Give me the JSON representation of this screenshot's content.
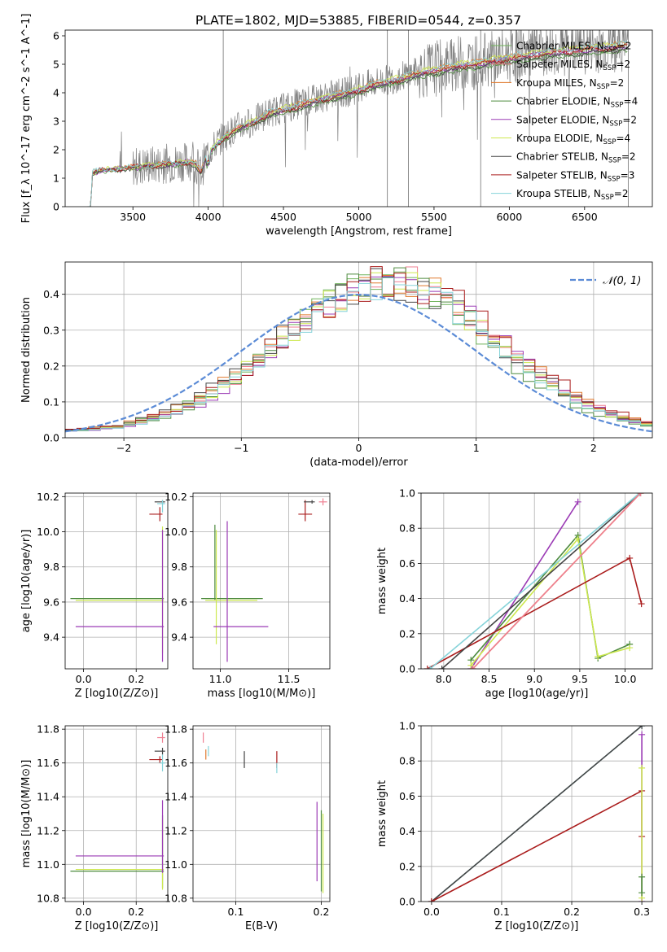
{
  "figure_title": "PLATE=1802, MJD=53885, FIBERID=0544, z=0.357",
  "colors": {
    "Chabrier MILES": "#6fb35a",
    "Salpeter MILES": "#ef7f92",
    "Kroupa MILES": "#e07a2e",
    "Chabrier ELODIE": "#4d8a3f",
    "Salpeter ELODIE": "#9b3bb5",
    "Kroupa ELODIE": "#cde84f",
    "Chabrier STELIB": "#444444",
    "Salpeter STELIB": "#aa1c1c",
    "Kroupa STELIB": "#86d3d9",
    "data": "#808080",
    "normal": "#5b8bd6"
  },
  "chart_data": [
    {
      "id": "spectrum",
      "type": "line",
      "title": "PLATE=1802, MJD=53885, FIBERID=0544, z=0.357",
      "xlabel": "wavelength [Angstrom, rest frame]",
      "ylabel": "Flux [f_λ 10^-17 erg cm^-2 s^-1 A^-1]",
      "xlim": [
        3050,
        6950
      ],
      "ylim": [
        0,
        6.2
      ],
      "xticks": [
        3500,
        4000,
        4500,
        5000,
        5500,
        6000,
        6500
      ],
      "yticks": [
        0,
        1,
        2,
        3,
        4,
        5,
        6
      ],
      "legend": [
        {
          "name": "Chabrier MILES",
          "n": "2"
        },
        {
          "name": "Salpeter MILES",
          "n": "2"
        },
        {
          "name": "Kroupa MILES",
          "n": "2"
        },
        {
          "name": "Chabrier ELODIE",
          "n": "4"
        },
        {
          "name": "Salpeter ELODIE",
          "n": "2"
        },
        {
          "name": "Kroupa ELODIE",
          "n": "4"
        },
        {
          "name": "Chabrier STELIB",
          "n": "2"
        },
        {
          "name": "Salpeter STELIB",
          "n": "3"
        },
        {
          "name": "Kroupa STELIB",
          "n": "2"
        }
      ],
      "legend_placement": "upper-right",
      "model_continuum": [
        [
          3200,
          0
        ],
        [
          3220,
          0
        ],
        [
          3230,
          1.2
        ],
        [
          3300,
          1.3
        ],
        [
          3400,
          1.35
        ],
        [
          3500,
          1.4
        ],
        [
          3600,
          1.45
        ],
        [
          3700,
          1.5
        ],
        [
          3800,
          1.55
        ],
        [
          3880,
          1.6
        ],
        [
          3920,
          1.5
        ],
        [
          3950,
          1.2
        ],
        [
          3990,
          1.8
        ],
        [
          4050,
          2.2
        ],
        [
          4100,
          2.45
        ],
        [
          4200,
          2.8
        ],
        [
          4300,
          3.0
        ],
        [
          4400,
          3.3
        ],
        [
          4500,
          3.45
        ],
        [
          4600,
          3.6
        ],
        [
          4700,
          3.75
        ],
        [
          4800,
          3.9
        ],
        [
          4900,
          4.0
        ],
        [
          5000,
          4.15
        ],
        [
          5100,
          4.35
        ],
        [
          5200,
          4.45
        ],
        [
          5300,
          4.6
        ],
        [
          5400,
          4.75
        ],
        [
          5500,
          4.85
        ],
        [
          5600,
          4.95
        ],
        [
          5700,
          5.05
        ],
        [
          5800,
          5.1
        ],
        [
          5900,
          5.2
        ],
        [
          6000,
          5.3
        ],
        [
          6100,
          5.35
        ],
        [
          6200,
          5.45
        ],
        [
          6300,
          5.5
        ],
        [
          6400,
          5.55
        ],
        [
          6500,
          5.6
        ],
        [
          6600,
          5.65
        ],
        [
          6700,
          5.7
        ],
        [
          6790,
          5.75
        ]
      ]
    },
    {
      "id": "residuals",
      "type": "line",
      "xlabel": "(data-model)/error",
      "ylabel": "Normed distribution",
      "xlim": [
        -2.5,
        2.5
      ],
      "ylim": [
        0,
        0.49
      ],
      "xticks": [
        -2,
        -1,
        0,
        1,
        2
      ],
      "yticks": [
        0.0,
        0.1,
        0.2,
        0.3,
        0.4
      ],
      "legend": [
        {
          "name": "𝒩(0, 1)"
        }
      ],
      "legend_placement": "upper-right",
      "normal": {
        "mean": 0,
        "sigma": 1
      },
      "hist_center": 0.25,
      "hist_sigma": 0.92
    },
    {
      "id": "age-vs-Z",
      "type": "scatter",
      "xlabel": "Z [log10(Z/Z⊙)]",
      "ylabel": "age [log10(age/yr)]",
      "xlim": [
        -0.07,
        0.32
      ],
      "ylim": [
        9.22,
        10.22
      ],
      "xticks": [
        0.0,
        0.2
      ],
      "yticks": [
        9.4,
        9.6,
        9.8,
        10.0,
        10.2
      ],
      "points": [
        {
          "series": "Chabrier ELODIE",
          "x": 0.3,
          "y": 9.62,
          "xerr": [
            0.35,
            0.005
          ],
          "yerr": [
            0.01,
            0.01
          ]
        },
        {
          "series": "Kroupa ELODIE",
          "x": 0.3,
          "y": 9.61,
          "xerr": [
            0.33,
            0.005
          ],
          "yerr": [
            0.3,
            0.42
          ]
        },
        {
          "series": "Salpeter ELODIE",
          "x": 0.3,
          "y": 9.46,
          "xerr": [
            0.33,
            0.005
          ],
          "yerr": [
            0.2,
            0.55
          ]
        },
        {
          "series": "Salpeter STELIB",
          "x": 0.29,
          "y": 10.1,
          "xerr": [
            0.04,
            0.01
          ],
          "yerr": [
            0.04,
            0.04
          ]
        },
        {
          "series": "Chabrier STELIB",
          "x": 0.3,
          "y": 10.17,
          "xerr": [
            0.03,
            0.01
          ],
          "yerr": [
            0.01,
            0.01
          ]
        },
        {
          "series": "Kroupa STELIB",
          "x": 0.3,
          "y": 10.16,
          "xerr": [
            0.02,
            0.01
          ],
          "yerr": [
            0.05,
            0.02
          ]
        }
      ]
    },
    {
      "id": "age-vs-mass",
      "type": "scatter",
      "xlabel": "mass [log10(M/M⊙)]",
      "ylabel": "",
      "xlim": [
        10.8,
        11.8
      ],
      "ylim": [
        9.22,
        10.22
      ],
      "xticks": [
        11.0,
        11.5
      ],
      "yticks": [
        9.4,
        9.6,
        9.8,
        10.0,
        10.2
      ],
      "points": [
        {
          "series": "Chabrier ELODIE",
          "x": 10.96,
          "y": 9.62,
          "xerr": [
            0.1,
            0.35
          ],
          "yerr": [
            0.01,
            0.42
          ]
        },
        {
          "series": "Kroupa ELODIE",
          "x": 10.97,
          "y": 9.61,
          "xerr": [
            0.08,
            0.3
          ],
          "yerr": [
            0.25,
            0.4
          ]
        },
        {
          "series": "Salpeter ELODIE",
          "x": 11.05,
          "y": 9.46,
          "xerr": [
            0.1,
            0.3
          ],
          "yerr": [
            0.2,
            0.6
          ]
        },
        {
          "series": "Salpeter STELIB",
          "x": 11.62,
          "y": 10.1,
          "xerr": [
            0.05,
            0.05
          ],
          "yerr": [
            0.04,
            0.08
          ]
        },
        {
          "series": "Chabrier STELIB",
          "x": 11.67,
          "y": 10.17,
          "xerr": [
            0.06,
            0.02
          ],
          "yerr": [
            0.01,
            0.01
          ]
        },
        {
          "series": "Salpeter MILES",
          "x": 11.75,
          "y": 10.17,
          "xerr": [
            0.03,
            0.03
          ],
          "yerr": [
            0.02,
            0.02
          ]
        }
      ]
    },
    {
      "id": "weight-vs-age",
      "type": "line",
      "xlabel": "age [log10(age/yr)]",
      "ylabel": "mass weight",
      "xlim": [
        7.75,
        10.3
      ],
      "ylim": [
        0,
        1.0
      ],
      "xticks": [
        8.0,
        8.5,
        9.0,
        9.5,
        10.0
      ],
      "yticks": [
        0.0,
        0.2,
        0.4,
        0.6,
        0.8,
        1.0
      ],
      "series": [
        {
          "name": "Salpeter ELODIE",
          "points": [
            [
              8.3,
              0.0
            ],
            [
              9.48,
              0.95
            ]
          ]
        },
        {
          "name": "Chabrier ELODIE",
          "points": [
            [
              8.3,
              0.05
            ],
            [
              9.48,
              0.76
            ],
            [
              9.7,
              0.06
            ],
            [
              10.05,
              0.14
            ]
          ]
        },
        {
          "name": "Kroupa ELODIE",
          "points": [
            [
              8.3,
              0.02
            ],
            [
              9.48,
              0.74
            ],
            [
              9.7,
              0.07
            ],
            [
              10.05,
              0.12
            ]
          ]
        },
        {
          "name": "Salpeter STELIB",
          "points": [
            [
              7.82,
              0.0
            ],
            [
              10.05,
              0.63
            ],
            [
              10.18,
              0.37
            ]
          ]
        },
        {
          "name": "Chabrier STELIB",
          "points": [
            [
              7.98,
              0.0
            ],
            [
              10.17,
              1.0
            ]
          ]
        },
        {
          "name": "Kroupa STELIB",
          "points": [
            [
              7.85,
              0.0
            ],
            [
              10.16,
              1.0
            ]
          ]
        },
        {
          "name": "Kroupa MILES",
          "points": [
            [
              8.32,
              0.0
            ],
            [
              10.17,
              1.0
            ]
          ]
        },
        {
          "name": "Salpeter MILES",
          "points": [
            [
              8.32,
              0.0
            ],
            [
              10.17,
              1.0
            ]
          ]
        }
      ]
    },
    {
      "id": "mass-vs-Z",
      "type": "scatter",
      "xlabel": "Z [log10(Z/Z⊙)]",
      "ylabel": "mass [log10(M/M⊙)]",
      "xlim": [
        -0.07,
        0.32
      ],
      "ylim": [
        10.78,
        11.82
      ],
      "xticks": [
        0.0,
        0.2
      ],
      "yticks": [
        10.8,
        11.0,
        11.2,
        11.4,
        11.6,
        11.8
      ],
      "points": [
        {
          "series": "Chabrier ELODIE",
          "x": 0.3,
          "y": 10.96,
          "xerr": [
            0.35,
            0.005
          ],
          "yerr": [
            0.1,
            0.33
          ]
        },
        {
          "series": "Kroupa ELODIE",
          "x": 0.3,
          "y": 10.97,
          "xerr": [
            0.33,
            0.005
          ],
          "yerr": [
            0.12,
            0.3
          ]
        },
        {
          "series": "Salpeter ELODIE",
          "x": 0.3,
          "y": 11.05,
          "xerr": [
            0.33,
            0.005
          ],
          "yerr": [
            0.1,
            0.33
          ]
        },
        {
          "series": "Salpeter STELIB",
          "x": 0.29,
          "y": 11.62,
          "xerr": [
            0.04,
            0.01
          ],
          "yerr": [
            0.02,
            0.02
          ]
        },
        {
          "series": "Chabrier STELIB",
          "x": 0.3,
          "y": 11.67,
          "xerr": [
            0.03,
            0.01
          ],
          "yerr": [
            0.02,
            0.02
          ]
        },
        {
          "series": "Salpeter MILES",
          "x": 0.3,
          "y": 11.75,
          "xerr": [
            0.02,
            0.01
          ],
          "yerr": [
            0.03,
            0.03
          ]
        },
        {
          "series": "Kroupa STELIB",
          "x": 0.3,
          "y": 11.6,
          "xerr": [
            0.01,
            0.01
          ],
          "yerr": [
            0.05,
            0.05
          ]
        }
      ]
    },
    {
      "id": "mass-vs-EBV",
      "type": "scatter",
      "xlabel": "E(B-V)",
      "ylabel": "",
      "xlim": [
        0.05,
        0.21
      ],
      "ylim": [
        10.78,
        11.82
      ],
      "xticks": [
        0.1,
        0.2
      ],
      "yticks": [
        10.8,
        11.0,
        11.2,
        11.4,
        11.6,
        11.8
      ],
      "points": [
        {
          "series": "Salpeter MILES",
          "x": 0.062,
          "y": 11.75,
          "xerr": [
            0,
            0
          ],
          "yerr": [
            0.03,
            0.03
          ]
        },
        {
          "series": "Kroupa MILES",
          "x": 0.065,
          "y": 11.65,
          "xerr": [
            0,
            0
          ],
          "yerr": [
            0.03,
            0.03
          ]
        },
        {
          "series": "Kroupa STELIB",
          "x": 0.068,
          "y": 11.67,
          "xerr": [
            0,
            0
          ],
          "yerr": [
            0.03,
            0.03
          ]
        },
        {
          "series": "Chabrier STELIB",
          "x": 0.11,
          "y": 11.62,
          "xerr": [
            0,
            0
          ],
          "yerr": [
            0.05,
            0.05
          ]
        },
        {
          "series": "Salpeter STELIB",
          "x": 0.148,
          "y": 11.62,
          "xerr": [
            0,
            0
          ],
          "yerr": [
            0.05,
            0.05
          ]
        },
        {
          "series": "Kroupa STELIB",
          "x": 0.148,
          "y": 11.57,
          "xerr": [
            0,
            0
          ],
          "yerr": [
            0.03,
            0.03
          ]
        },
        {
          "series": "Salpeter ELODIE",
          "x": 0.195,
          "y": 11.05,
          "xerr": [
            0,
            0
          ],
          "yerr": [
            0.15,
            0.32
          ]
        },
        {
          "series": "Chabrier ELODIE",
          "x": 0.2,
          "y": 10.96,
          "xerr": [
            0,
            0
          ],
          "yerr": [
            0.12,
            0.36
          ]
        },
        {
          "series": "Kroupa ELODIE",
          "x": 0.202,
          "y": 10.97,
          "xerr": [
            0,
            0
          ],
          "yerr": [
            0.14,
            0.33
          ]
        }
      ]
    },
    {
      "id": "weight-vs-Z",
      "type": "line",
      "xlabel": "Z [log10(Z/Z⊙)]",
      "ylabel": "mass weight",
      "xlim": [
        -0.015,
        0.315
      ],
      "ylim": [
        0,
        1.0
      ],
      "xticks": [
        0.0,
        0.1,
        0.2,
        0.3
      ],
      "yticks": [
        0.0,
        0.2,
        0.4,
        0.6,
        0.8,
        1.0
      ],
      "series": [
        {
          "name": "Kroupa STELIB",
          "points": [
            [
              0.0,
              0.0
            ],
            [
              0.3,
              1.0
            ]
          ]
        },
        {
          "name": "Chabrier STELIB",
          "points": [
            [
              0.0,
              0.0
            ],
            [
              0.3,
              1.0
            ]
          ]
        },
        {
          "name": "Salpeter STELIB",
          "points": [
            [
              0.0,
              0.0
            ],
            [
              0.3,
              0.63
            ],
            [
              0.3,
              0.37
            ]
          ]
        },
        {
          "name": "Salpeter ELODIE",
          "points": [
            [
              0.3,
              0.0
            ],
            [
              0.3,
              0.95
            ]
          ]
        },
        {
          "name": "Kroupa ELODIE",
          "points": [
            [
              0.3,
              0.02
            ],
            [
              0.3,
              0.76
            ]
          ]
        },
        {
          "name": "Chabrier ELODIE",
          "points": [
            [
              0.3,
              0.05
            ],
            [
              0.3,
              0.14
            ]
          ]
        }
      ]
    }
  ]
}
